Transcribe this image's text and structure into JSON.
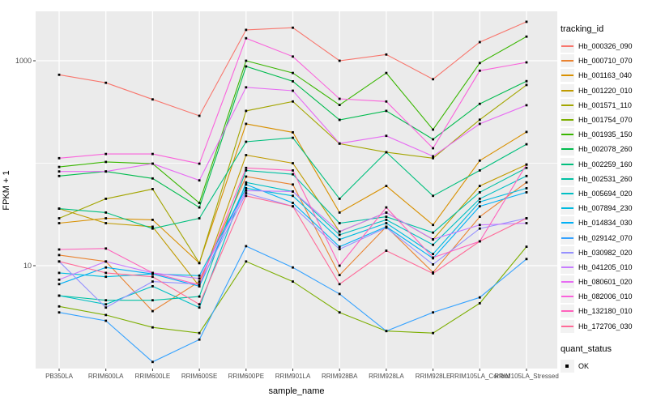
{
  "chart_data": {
    "type": "line",
    "title": "",
    "xlabel": "sample_name",
    "ylabel": "FPKM + 1",
    "y_scale": "log10",
    "ylim": [
      1,
      3100
    ],
    "grid": true,
    "legend_position": "right",
    "y_ticks": [
      {
        "label": "1000",
        "value": 1000
      },
      {
        "label": "10",
        "value": 10
      }
    ],
    "y_minor_gridlines": [
      100
    ],
    "categories": [
      "PB350LA",
      "RRIM600LA",
      "RRIM600LE",
      "RRIM600SE",
      "RRIM600PE",
      "RRIM901LA",
      "RRIM928BA",
      "RRIM928LA",
      "RRIM928LE",
      "RRIM105LA_Control",
      "RRIM105LA_Stressed"
    ],
    "legend_title": "tracking_id",
    "series": [
      {
        "name": "Hb_000326_090",
        "color": "#F8766D",
        "values": [
          730,
          610,
          420,
          290,
          2000,
          2100,
          1000,
          1150,
          660,
          1520,
          2400
        ]
      },
      {
        "name": "Hb_000710_070",
        "color": "#EA8331",
        "values": [
          12.7,
          11,
          3.6,
          7,
          74,
          62,
          8.1,
          24,
          8.6,
          30,
          65
        ]
      },
      {
        "name": "Hb_001163_040",
        "color": "#D89000",
        "values": [
          26,
          29,
          28,
          10.6,
          242,
          200,
          33,
          60,
          25,
          106,
          202
        ]
      },
      {
        "name": "Hb_001220_010",
        "color": "#C09B00",
        "values": [
          36,
          26,
          24,
          6.3,
          120,
          100,
          21.5,
          33,
          18,
          60,
          97
        ]
      },
      {
        "name": "Hb_001571_110",
        "color": "#A3A500",
        "values": [
          29,
          45,
          56,
          10.6,
          324,
          400,
          155,
          128,
          112,
          266,
          580
        ]
      },
      {
        "name": "Hb_001754_070",
        "color": "#7CAE00",
        "values": [
          4,
          3.3,
          2.5,
          2.2,
          11,
          7,
          3.5,
          2.3,
          2.2,
          4.3,
          15.3
        ]
      },
      {
        "name": "Hb_001935_150",
        "color": "#39B600",
        "values": [
          92,
          103,
          99,
          41,
          1000,
          760,
          370,
          760,
          213,
          950,
          1720
        ]
      },
      {
        "name": "Hb_002078_260",
        "color": "#00BB4E",
        "values": [
          75,
          83,
          71,
          37,
          880,
          630,
          265,
          324,
          171,
          380,
          632
        ]
      },
      {
        "name": "Hb_002259_160",
        "color": "#00BF7D",
        "values": [
          36,
          33,
          23,
          29,
          162,
          177,
          45,
          128,
          48,
          85,
          153
        ]
      },
      {
        "name": "Hb_002531_260",
        "color": "#00C1A3",
        "values": [
          5.1,
          4.6,
          4.6,
          5,
          85,
          78,
          26,
          30,
          21,
          52,
          90
        ]
      },
      {
        "name": "Hb_005694_020",
        "color": "#00BFC4",
        "values": [
          5.1,
          4.2,
          6.3,
          3.9,
          65,
          53,
          20,
          28,
          16,
          45,
          75
        ]
      },
      {
        "name": "Hb_007894_230",
        "color": "#00BAE0",
        "values": [
          8.5,
          7.8,
          8.3,
          8,
          57,
          48,
          18,
          26,
          13,
          42,
          57
        ]
      },
      {
        "name": "Hb_014834_030",
        "color": "#00B0F6",
        "values": [
          6.6,
          9.6,
          8.3,
          6.3,
          62,
          41,
          15.3,
          24,
          11.8,
          38,
          52
        ]
      },
      {
        "name": "Hb_029142_070",
        "color": "#35A2FF",
        "values": [
          3.5,
          2.9,
          1.15,
          1.9,
          15.5,
          9.6,
          5.3,
          2.3,
          3.5,
          4.9,
          11.6
        ]
      },
      {
        "name": "Hb_030982_020",
        "color": "#9590FF",
        "values": [
          11,
          3.9,
          7,
          6.6,
          51,
          38,
          14.5,
          23.5,
          10.3,
          23,
          29
        ]
      },
      {
        "name": "Hb_041205_010",
        "color": "#C77CFF",
        "values": [
          7.3,
          11,
          8.5,
          7.5,
          54,
          53,
          21.5,
          33,
          18.1,
          25,
          26
        ]
      },
      {
        "name": "Hb_080601_020",
        "color": "#E76BF3",
        "values": [
          83,
          83,
          99,
          68,
          550,
          510,
          156,
          185,
          117,
          242,
          368
        ]
      },
      {
        "name": "Hb_082006_010",
        "color": "#FA62DB",
        "values": [
          112,
          123,
          123,
          99,
          1660,
          1100,
          425,
          400,
          140,
          800,
          965
        ]
      },
      {
        "name": "Hb_132180_010",
        "color": "#FF62BC",
        "values": [
          14.4,
          14.7,
          8.5,
          6.5,
          90,
          85,
          10,
          37,
          12,
          17.3,
          97
        ]
      },
      {
        "name": "Hb_172706_030",
        "color": "#FF6A98",
        "values": [
          11,
          8.5,
          7.8,
          4.2,
          48,
          38,
          6.6,
          14,
          8.4,
          17.3,
          29
        ]
      }
    ],
    "legend2_title": "quant_status",
    "legend2_items": [
      {
        "label": "OK",
        "marker": "black-square"
      }
    ]
  },
  "colors": {
    "panel_bg": "#EBEBEB",
    "gridline": "#FFFFFF",
    "axis_text": "#4D4D4D",
    "tick_mark": "#333333",
    "point": "#000000",
    "legend_key_bg": "#F2F2F2"
  }
}
